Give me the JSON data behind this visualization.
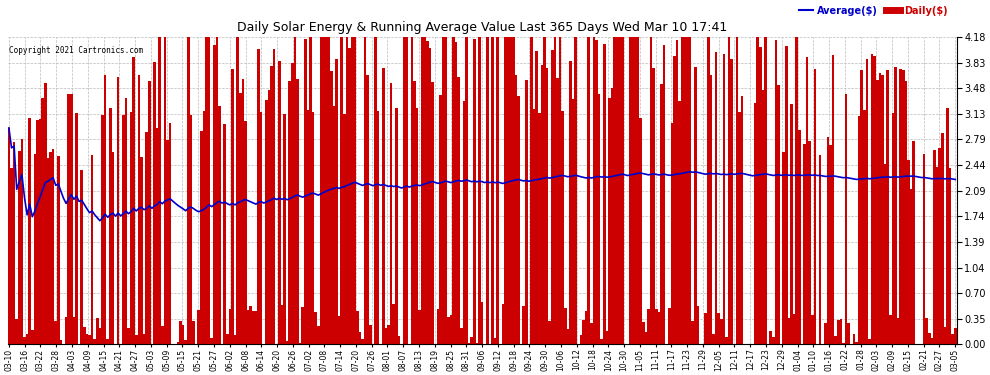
{
  "title": "Daily Solar Energy & Running Average Value Last 365 Days Wed Mar 10 17:41",
  "copyright": "Copyright 2021 Cartronics.com",
  "yticks": [
    0.0,
    0.35,
    0.7,
    1.04,
    1.39,
    1.74,
    2.09,
    2.44,
    2.79,
    3.13,
    3.48,
    3.83,
    4.18
  ],
  "ylim": [
    0.0,
    4.18
  ],
  "bar_color": "#cc0000",
  "avg_color": "#0000cc",
  "background_color": "#ffffff",
  "grid_color": "#bbbbbb",
  "title_color": "#000000",
  "copyright_color": "#000000",
  "legend_avg_color": "#0000cc",
  "legend_daily_color": "#cc0000",
  "x_labels": [
    "03-10",
    "03-16",
    "03-22",
    "03-28",
    "04-03",
    "04-09",
    "04-15",
    "04-21",
    "04-27",
    "05-03",
    "05-09",
    "05-15",
    "05-21",
    "05-27",
    "06-02",
    "06-08",
    "06-14",
    "06-20",
    "06-26",
    "07-02",
    "07-08",
    "07-14",
    "07-20",
    "07-26",
    "08-01",
    "08-07",
    "08-13",
    "08-19",
    "08-25",
    "08-31",
    "09-06",
    "09-12",
    "09-18",
    "09-24",
    "09-30",
    "10-06",
    "10-12",
    "10-18",
    "10-24",
    "10-30",
    "11-05",
    "11-11",
    "11-17",
    "11-23",
    "11-29",
    "12-05",
    "12-11",
    "12-17",
    "12-23",
    "12-29",
    "01-04",
    "01-10",
    "01-16",
    "01-22",
    "01-28",
    "02-03",
    "02-09",
    "02-15",
    "02-21",
    "02-27",
    "03-05"
  ],
  "figsize": [
    9.9,
    3.75
  ],
  "dpi": 100
}
